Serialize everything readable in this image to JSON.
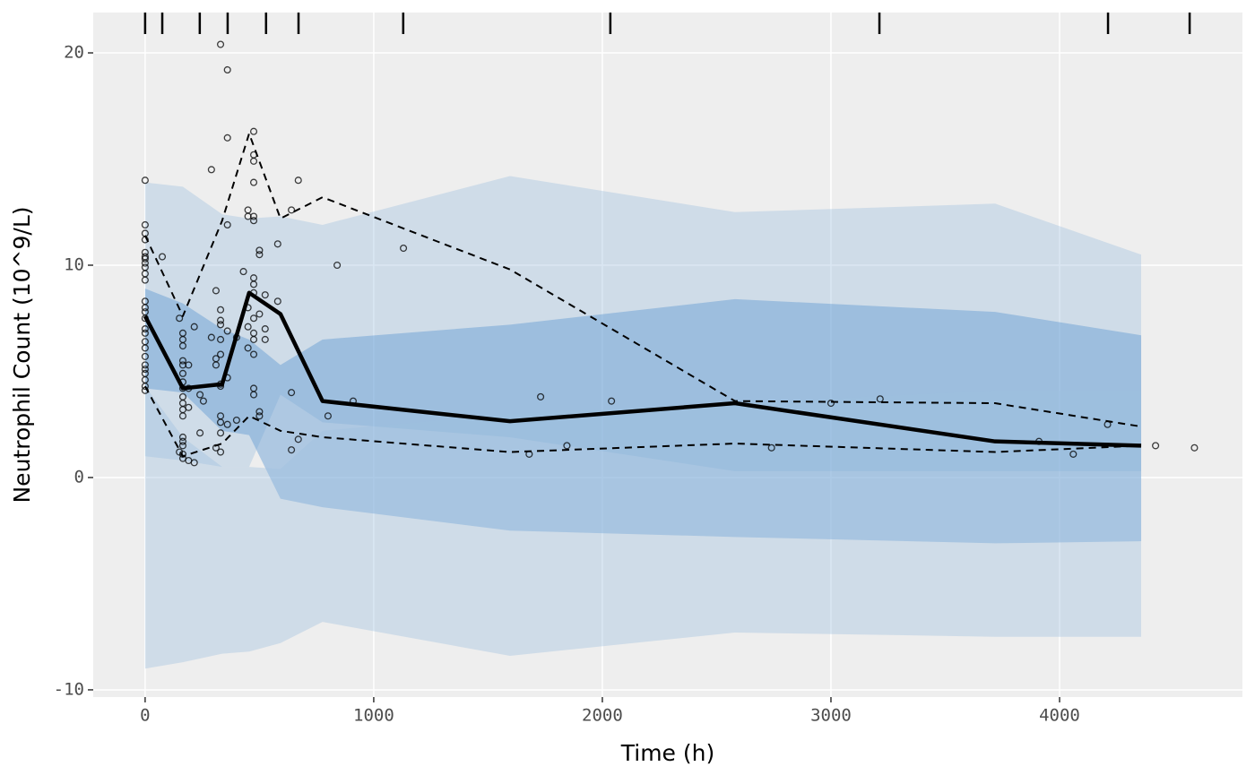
{
  "chart_data": {
    "type": "vpc",
    "xlabel": "Time (h)",
    "ylabel": "Neutrophil Count (10^9/L)",
    "xlim": [
      -227,
      4800
    ],
    "ylim": [
      -10.34,
      21.9
    ],
    "xticks": [
      0,
      1000,
      2000,
      3000,
      4000
    ],
    "yticks": [
      -10,
      0,
      10,
      20
    ],
    "grid": true,
    "x": [
      0,
      165,
      337,
      455,
      592,
      776,
      1596,
      2580,
      3718,
      4357
    ],
    "bands": [
      {
        "color": "#9dbfdf",
        "opacity": 0.38,
        "upper": [
          13.9,
          13.7,
          12.4,
          12.2,
          12.3,
          11.9,
          14.2,
          12.5,
          12.9,
          10.5
        ],
        "lower": [
          1.0,
          0.8,
          0.5,
          0.5,
          3.9,
          2.6,
          1.9,
          0.3,
          0.3,
          0.3
        ]
      },
      {
        "color": "#5f9ad2",
        "opacity": 0.45,
        "upper": [
          8.9,
          8.2,
          7.0,
          6.5,
          5.3,
          6.5,
          7.2,
          8.4,
          7.8,
          6.7
        ],
        "lower": [
          4.2,
          4.0,
          2.2,
          2.0,
          -1.0,
          -1.4,
          -2.5,
          -2.8,
          -3.1,
          -3.0
        ]
      },
      {
        "color": "#9dbfdf",
        "opacity": 0.38,
        "upper": [
          4.3,
          1.9,
          0.5,
          0.5,
          0.4,
          2.2,
          3.0,
          3.5,
          4.1,
          4.1
        ],
        "lower": [
          -9.0,
          -8.7,
          -8.3,
          -8.2,
          -7.8,
          -6.8,
          -8.4,
          -7.3,
          -7.5,
          -7.5
        ]
      }
    ],
    "series": [
      {
        "color": "#000000",
        "dash": true,
        "width": 2,
        "values": [
          11.4,
          7.6,
          12.1,
          16.2,
          12.2,
          13.2,
          9.8,
          3.6,
          3.5,
          2.4
        ]
      },
      {
        "color": "#000000",
        "dash": true,
        "width": 2,
        "values": [
          4.3,
          1.0,
          1.6,
          2.9,
          2.2,
          1.9,
          1.2,
          1.6,
          1.2,
          1.5
        ]
      },
      {
        "color": "#000000",
        "dash": false,
        "width": 4.5,
        "values": [
          7.6,
          4.2,
          4.4,
          8.7,
          7.7,
          3.6,
          2.65,
          3.5,
          1.7,
          1.5
        ]
      }
    ],
    "points": {
      "x": [
        0,
        0,
        0,
        0,
        0,
        0,
        0,
        0,
        0,
        0,
        0,
        0,
        0,
        0,
        0,
        0,
        0,
        0,
        0,
        0,
        0,
        0,
        0,
        0,
        0,
        0,
        75,
        150,
        150,
        165,
        165,
        165,
        165,
        165,
        165,
        165,
        165,
        165,
        165,
        165,
        165,
        165,
        165,
        165,
        165,
        165,
        190,
        190,
        190,
        190,
        215,
        215,
        240,
        240,
        255,
        290,
        290,
        310,
        310,
        310,
        310,
        330,
        330,
        330,
        330,
        330,
        330,
        330,
        330,
        330,
        330,
        330,
        330,
        360,
        360,
        360,
        360,
        360,
        360,
        400,
        400,
        430,
        450,
        450,
        450,
        450,
        450,
        475,
        475,
        475,
        475,
        475,
        475,
        475,
        475,
        475,
        475,
        475,
        475,
        475,
        475,
        475,
        500,
        500,
        500,
        500,
        500,
        525,
        525,
        525,
        580,
        580,
        640,
        640,
        640,
        670,
        670,
        840,
        800,
        910,
        1130,
        1680,
        1730,
        1845,
        2040,
        2740,
        3000,
        3215,
        3910,
        4060,
        4210,
        4420,
        4590
      ],
      "values": [
        14.0,
        11.9,
        11.5,
        11.2,
        10.6,
        10.4,
        10.3,
        10.1,
        9.9,
        9.6,
        9.3,
        8.3,
        8.0,
        7.8,
        7.5,
        7.0,
        6.8,
        6.4,
        6.1,
        5.7,
        5.3,
        5.1,
        4.9,
        4.6,
        4.3,
        4.1,
        10.4,
        7.5,
        1.2,
        6.8,
        6.5,
        6.2,
        5.5,
        5.3,
        4.9,
        4.5,
        4.2,
        3.8,
        3.5,
        3.2,
        2.9,
        1.9,
        1.7,
        1.5,
        1.1,
        0.9,
        5.3,
        4.2,
        3.3,
        0.8,
        7.1,
        0.7,
        3.9,
        2.1,
        3.6,
        14.5,
        6.6,
        8.8,
        5.6,
        5.3,
        1.4,
        20.4,
        7.9,
        7.4,
        7.2,
        6.5,
        5.8,
        4.4,
        4.3,
        2.9,
        2.6,
        2.1,
        1.2,
        19.2,
        16.0,
        11.9,
        6.9,
        4.7,
        2.5,
        6.6,
        2.7,
        9.7,
        12.6,
        12.3,
        8.0,
        6.1,
        7.1,
        16.3,
        15.2,
        14.9,
        13.9,
        12.3,
        12.1,
        9.4,
        9.1,
        8.7,
        7.5,
        6.8,
        6.5,
        5.8,
        4.2,
        3.9,
        10.7,
        10.5,
        7.7,
        3.1,
        2.9,
        8.6,
        7.0,
        6.5,
        11.0,
        8.3,
        12.6,
        4.0,
        1.3,
        14.0,
        1.8,
        10.0,
        2.9,
        3.6,
        10.8,
        1.1,
        3.8,
        1.5,
        3.6,
        1.4,
        3.5,
        3.7,
        1.7,
        1.1,
        2.5,
        1.5,
        1.4
      ]
    },
    "bin_edges": [
      0,
      75,
      239,
      361,
      529,
      671,
      1129,
      2035,
      3212,
      4212,
      4569
    ]
  }
}
